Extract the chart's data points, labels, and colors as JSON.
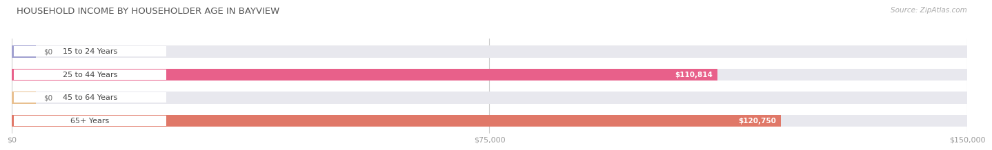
{
  "title": "HOUSEHOLD INCOME BY HOUSEHOLDER AGE IN BAYVIEW",
  "source": "Source: ZipAtlas.com",
  "categories": [
    "15 to 24 Years",
    "25 to 44 Years",
    "45 to 64 Years",
    "65+ Years"
  ],
  "values": [
    0,
    110814,
    0,
    120750
  ],
  "bar_colors": [
    "#a0a0d0",
    "#e8608a",
    "#e8c090",
    "#e07868"
  ],
  "bg_bar_color": "#e8e8ee",
  "xlim": [
    0,
    150000
  ],
  "xticks": [
    0,
    75000,
    150000
  ],
  "xticklabels": [
    "$0",
    "$75,000",
    "$150,000"
  ],
  "value_labels": [
    "$0",
    "$110,814",
    "$0",
    "$120,750"
  ],
  "fig_bg": "#ffffff",
  "title_color": "#555555",
  "source_color": "#aaaaaa",
  "label_bg": "#ffffff",
  "label_text_color": "#444444",
  "grid_color": "#cccccc",
  "tick_color": "#999999"
}
